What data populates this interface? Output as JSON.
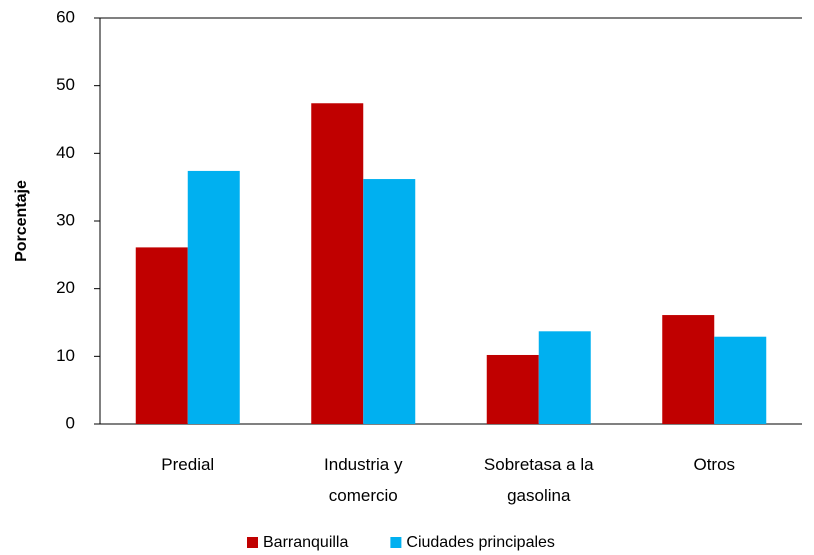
{
  "chart_data": {
    "type": "bar",
    "y_label": "Porcentaje",
    "categories": [
      "Predial",
      "Industria y\ncomercio",
      "Sobretasa  a la\ngasolina",
      "Otros"
    ],
    "series": [
      {
        "name": "Barranquilla",
        "color": "#c00000",
        "values": [
          26.1,
          47.4,
          10.2,
          16.1
        ]
      },
      {
        "name": "Ciudades principales",
        "color": "#00b0f0",
        "values": [
          37.4,
          36.2,
          13.7,
          12.9
        ]
      }
    ],
    "ylim": [
      0,
      60
    ],
    "yticks": [
      0,
      10,
      20,
      30,
      40,
      50,
      60
    ],
    "grid": false,
    "legend": "bottom"
  }
}
